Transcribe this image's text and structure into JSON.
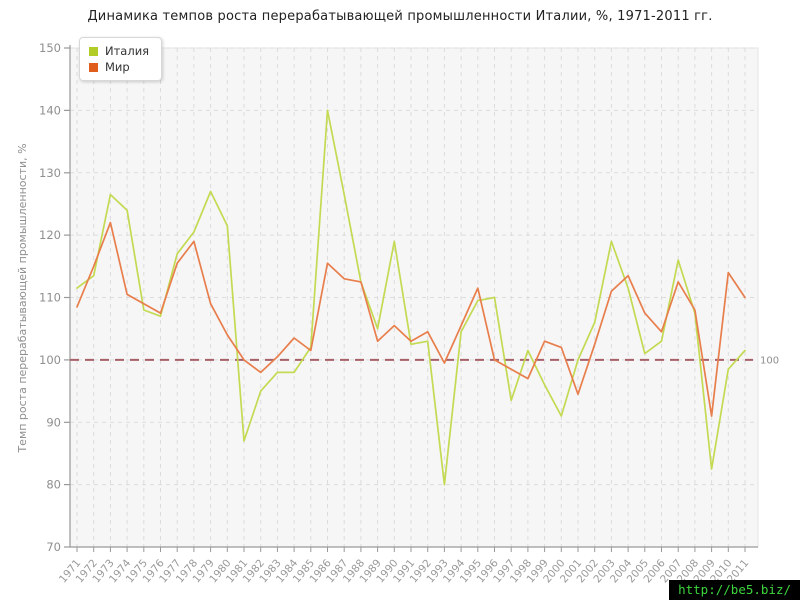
{
  "title": "Динамика темпов роста перерабатывающей промышленности Италии, %, 1971-2011 гг.",
  "y_axis_label": "Темп роста перерабатывающей промышленности, %",
  "watermark": {
    "text": "http://be5.biz/",
    "text_color": "#3dd43d",
    "bg_color": "#000000"
  },
  "legend": {
    "position": "top-left",
    "items": [
      {
        "label": "Италия",
        "marker_color": "#b2cc27"
      },
      {
        "label": "Мир",
        "marker_color": "#df5e1b"
      }
    ]
  },
  "reference_line": {
    "value": 100,
    "label": "100",
    "color": "#a86068"
  },
  "chart_data": {
    "type": "line",
    "title": "Динамика темпов роста перерабатывающей промышленности Италии, %, 1971-2011 гг.",
    "xlabel": "",
    "ylabel": "Темп роста перерабатывающей промышленности, %",
    "ylim": [
      70,
      150
    ],
    "yticks": [
      70,
      80,
      90,
      100,
      110,
      120,
      130,
      140,
      150
    ],
    "grid": true,
    "legend_position": "top-left",
    "x": [
      1971,
      1972,
      1973,
      1974,
      1975,
      1976,
      1977,
      1978,
      1979,
      1980,
      1981,
      1982,
      1983,
      1984,
      1985,
      1986,
      1987,
      1988,
      1989,
      1990,
      1991,
      1992,
      1993,
      1994,
      1995,
      1996,
      1997,
      1998,
      1999,
      2000,
      2001,
      2002,
      2003,
      2004,
      2005,
      2006,
      2007,
      2008,
      2009,
      2010,
      2011
    ],
    "series": [
      {
        "name": "Италия",
        "color": "#c3da52",
        "values": [
          111.5,
          113.5,
          126.5,
          124,
          108,
          107,
          117,
          120.5,
          127,
          121.5,
          87,
          95,
          98,
          98,
          102,
          140,
          126.5,
          112.5,
          105,
          119,
          102.5,
          103,
          80,
          104.5,
          109.5,
          110,
          93.5,
          101.5,
          96,
          91,
          100,
          106,
          119,
          111.5,
          101,
          103,
          116,
          107.5,
          82.5,
          98.5,
          101.5
        ]
      },
      {
        "name": "Мир",
        "color": "#e87e4c",
        "values": [
          108.5,
          115,
          122,
          110.5,
          109,
          107.5,
          115.5,
          119,
          109,
          104,
          100,
          98,
          100.5,
          103.5,
          101.5,
          115.5,
          113,
          112.5,
          103,
          105.5,
          103,
          104.5,
          99.5,
          105.5,
          111.5,
          100,
          98.5,
          97,
          103,
          102,
          94.5,
          102.5,
          111,
          113.5,
          107.5,
          104.5,
          112.5,
          108,
          91,
          114,
          110
        ]
      }
    ]
  }
}
